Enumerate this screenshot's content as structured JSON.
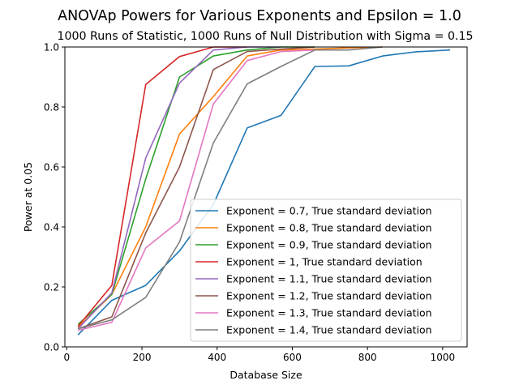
{
  "chart_data": {
    "type": "line",
    "title": "ANOVAp Powers for Various Exponents and Epsilon = 1.0",
    "subtitle": "1000 Runs of Statistic, 1000 Runs of Null Distribution with Sigma = 0.15",
    "xlabel": "Database Size",
    "ylabel": "Power at 0.05",
    "xlim": [
      -5,
      1065
    ],
    "ylim": [
      0,
      1.0
    ],
    "xticks": [
      0,
      200,
      400,
      600,
      800,
      1000
    ],
    "yticks": [
      0.0,
      0.2,
      0.4,
      0.6,
      0.8,
      1.0
    ],
    "xtick_labels": [
      "0",
      "200",
      "400",
      "600",
      "800",
      "1000"
    ],
    "ytick_labels": [
      "0.0",
      "0.2",
      "0.4",
      "0.6",
      "0.8",
      "1.0"
    ],
    "grid": false,
    "legend_position": "lower-right",
    "series": [
      {
        "name": "Exponent = 0.7, True standard deviation",
        "color": "#1f77b4",
        "x": [
          30,
          120,
          210,
          300,
          390,
          480,
          570,
          660,
          750,
          840,
          930,
          1020
        ],
        "y": [
          0.04,
          0.155,
          0.205,
          0.32,
          0.475,
          0.73,
          0.772,
          0.935,
          0.937,
          0.97,
          0.984,
          0.99
        ]
      },
      {
        "name": "Exponent = 0.8, True standard deviation",
        "color": "#ff7f0e",
        "x": [
          30,
          120,
          210,
          300,
          390,
          480,
          570,
          660,
          750,
          840
        ],
        "y": [
          0.065,
          0.175,
          0.4,
          0.71,
          0.835,
          0.97,
          0.99,
          0.993,
          0.997,
          1.0
        ]
      },
      {
        "name": "Exponent = 0.9, True standard deviation",
        "color": "#2ca02c",
        "x": [
          30,
          120,
          210,
          300,
          390,
          480,
          570,
          660
        ],
        "y": [
          0.075,
          0.175,
          0.56,
          0.9,
          0.97,
          0.99,
          1.0,
          1.0
        ]
      },
      {
        "name": "Exponent = 1, True standard deviation",
        "color": "#d62728",
        "x": [
          30,
          120,
          210,
          300,
          390,
          480
        ],
        "y": [
          0.068,
          0.205,
          0.875,
          0.968,
          1.0,
          1.0
        ]
      },
      {
        "name": "Exponent = 1.1, True standard deviation",
        "color": "#9467bd",
        "x": [
          30,
          120,
          210,
          300,
          390,
          480,
          570
        ],
        "y": [
          0.06,
          0.18,
          0.63,
          0.88,
          0.99,
          1.0,
          1.0
        ]
      },
      {
        "name": "Exponent = 1.2, True standard deviation",
        "color": "#8c564b",
        "x": [
          30,
          120,
          210,
          300,
          390,
          480,
          570,
          660
        ],
        "y": [
          0.06,
          0.1,
          0.38,
          0.6,
          0.925,
          0.985,
          0.993,
          1.0
        ]
      },
      {
        "name": "Exponent = 1.3, True standard deviation",
        "color": "#e377c2",
        "x": [
          30,
          120,
          210,
          300,
          390,
          480,
          570,
          660
        ],
        "y": [
          0.055,
          0.082,
          0.33,
          0.42,
          0.81,
          0.955,
          0.985,
          0.99
        ]
      },
      {
        "name": "Exponent = 1.4, True standard deviation",
        "color": "#7f7f7f",
        "x": [
          30,
          120,
          210,
          300,
          390,
          480,
          570,
          660,
          750,
          840
        ],
        "y": [
          0.06,
          0.09,
          0.165,
          0.35,
          0.68,
          0.877,
          0.935,
          0.99,
          0.99,
          1.0
        ]
      }
    ]
  }
}
